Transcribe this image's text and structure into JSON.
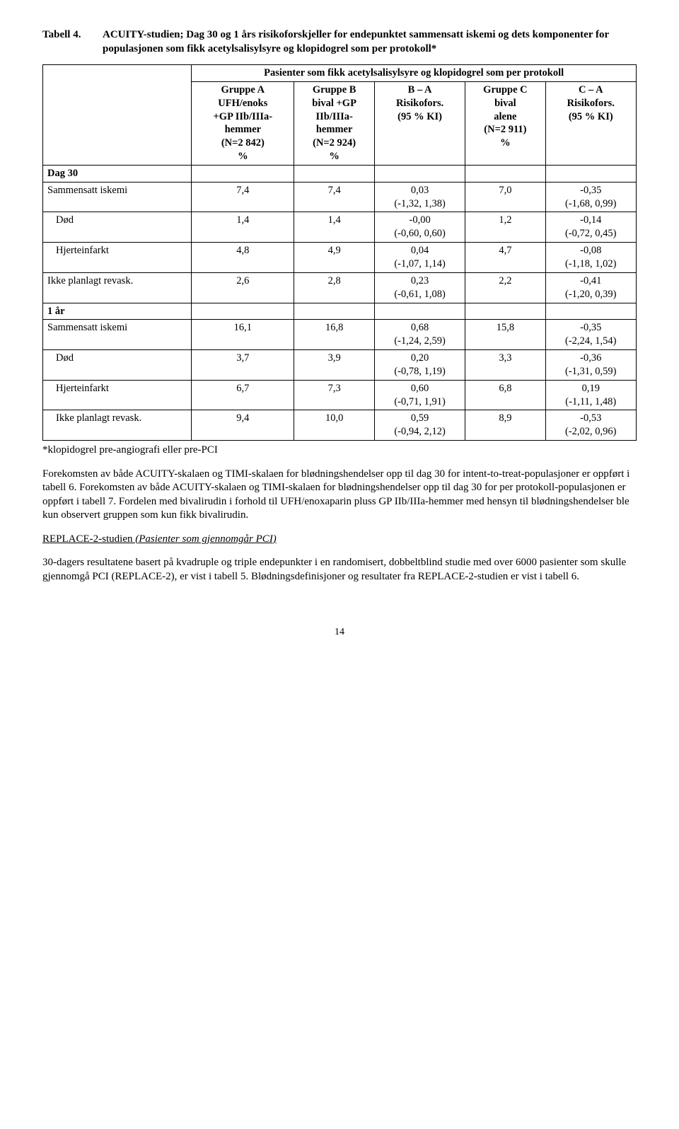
{
  "tabell_label": "Tabell 4.",
  "tabell_desc": "ACUITY-studien; Dag 30 og 1 års risikoforskjeller for endepunktet sammensatt iskemi og dets komponenter for populasjonen som fikk acetylsalisylsyre og klopidogrel som per protokoll*",
  "header_top": "Pasienter som fikk acetylsalisylsyre og klopidogrel som per protokoll",
  "cols": [
    "Gruppe A\nUFH/enoks\n+GP IIb/IIIa-\nhemmer\n(N=2 842)\n%",
    "Gruppe B\nbival +GP\nIIb/IIIa-\nhemmer\n(N=2 924)\n%",
    "B – A\nRisikofors.\n(95 % KI)",
    "Gruppe C\nbival\nalene\n(N=2 911)\n%",
    "C – A\nRisikofors.\n(95 % KI)"
  ],
  "sections": [
    {
      "title": "Dag 30",
      "rows": [
        {
          "label": "Sammensatt iskemi",
          "indent": false,
          "a": "7,4",
          "b": "7,4",
          "ba": "0,03\n(-1,32, 1,38)",
          "c": "7,0",
          "ca": "-0,35\n(-1,68, 0,99)"
        },
        {
          "label": "Død",
          "indent": true,
          "a": "1,4",
          "b": "1,4",
          "ba": "-0,00\n(-0,60, 0,60)",
          "c": "1,2",
          "ca": "-0,14\n(-0,72, 0,45)"
        },
        {
          "label": "Hjerteinfarkt",
          "indent": true,
          "a": "4,8",
          "b": "4,9",
          "ba": "0,04\n(-1,07, 1,14)",
          "c": "4,7",
          "ca": "-0,08\n(-1,18, 1,02)"
        },
        {
          "label": "Ikke planlagt revask.",
          "indent": false,
          "a": "2,6",
          "b": "2,8",
          "ba": "0,23\n(-0,61, 1,08)",
          "c": "2,2",
          "ca": "-0,41\n(-1,20, 0,39)"
        }
      ]
    },
    {
      "title": "1 år",
      "rows": [
        {
          "label": "Sammensatt iskemi",
          "indent": false,
          "a": "16,1",
          "b": "16,8",
          "ba": "0,68\n(-1,24, 2,59)",
          "c": "15,8",
          "ca": "-0,35\n(-2,24, 1,54)"
        },
        {
          "label": "Død",
          "indent": true,
          "a": "3,7",
          "b": "3,9",
          "ba": "0,20\n(-0,78, 1,19)",
          "c": "3,3",
          "ca": "-0,36\n(-1,31, 0,59)"
        },
        {
          "label": "Hjerteinfarkt",
          "indent": true,
          "a": "6,7",
          "b": "7,3",
          "ba": "0,60\n(-0,71, 1,91)",
          "c": "6,8",
          "ca": "0,19\n(-1,11, 1,48)"
        },
        {
          "label": "Ikke planlagt revask.",
          "indent": true,
          "a": "9,4",
          "b": "10,0",
          "ba": "0,59\n(-0,94, 2,12)",
          "c": "8,9",
          "ca": "-0,53\n(-2,02, 0,96)"
        }
      ]
    }
  ],
  "footnote": "*klopidogrel pre-angiografi eller pre-PCI",
  "para1": "Forekomsten av både ACUITY-skalaen og TIMI-skalaen for blødningshendelser opp til dag 30 for intent-to-treat-populasjoner er oppført i tabell 6. Forekomsten av både ACUITY-skalaen og TIMI-skalaen for blødningshendelser opp til dag 30 for per protokoll-populasjonen er oppført i tabell 7. Fordelen med bivalirudin i forhold til UFH/enoxaparin pluss GP IIb/IIIa-hemmer med hensyn til blødningshendelser ble kun observert gruppen som kun fikk bivalirudin.",
  "study_title_u": "REPLACE-2-studien",
  "study_title_i": " (Pasienter som gjennomgår PCI)",
  "para2": "30-dagers resultatene basert på kvadruple og triple endepunkter i en randomisert, dobbeltblind studie med over 6000 pasienter som skulle gjennomgå PCI (REPLACE-2), er vist i tabell 5. Blødningsdefinisjoner og resultater fra REPLACE-2-studien er vist i tabell 6.",
  "page_number": "14"
}
